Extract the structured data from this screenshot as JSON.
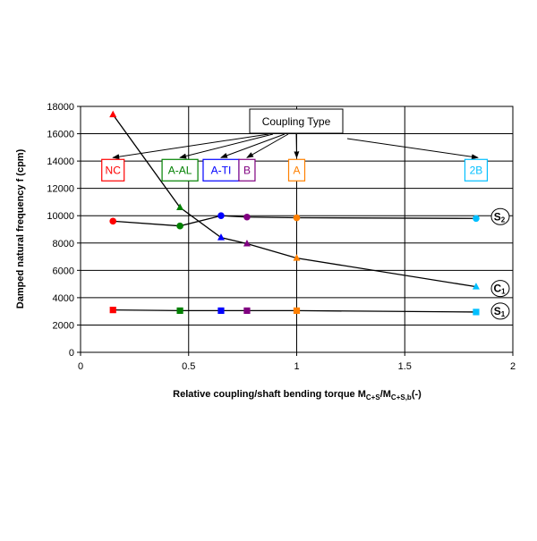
{
  "chart_data": {
    "type": "scatter",
    "xlabel": "Relative coupling/shaft bending torque M",
    "xlabel_sub1": "C+S",
    "xlabel_mid": "/M",
    "xlabel_sub2": "C+S,b",
    "xlabel_suffix": "(-)",
    "ylabel": "Damped natural frequency f (cpm)",
    "xlim": [
      0,
      2
    ],
    "ylim": [
      0,
      18000
    ],
    "x_ticks": [
      0,
      0.5,
      1,
      1.5,
      2
    ],
    "x_tick_labels": [
      "0",
      "0.5",
      "1",
      "1.5",
      "2"
    ],
    "y_ticks": [
      0,
      2000,
      4000,
      6000,
      8000,
      10000,
      12000,
      14000,
      16000,
      18000
    ],
    "y_tick_labels": [
      "0",
      "2000",
      "4000",
      "6000",
      "8000",
      "10000",
      "12000",
      "14000",
      "16000",
      "18000"
    ],
    "grid": true,
    "couplings": [
      {
        "label": "NC",
        "x": 0.15,
        "color": "#ff0000"
      },
      {
        "label": "A-AL",
        "x": 0.46,
        "color": "#008000"
      },
      {
        "label": "A-TI",
        "x": 0.65,
        "color": "#0000ff"
      },
      {
        "label": "B",
        "x": 0.77,
        "color": "#800080"
      },
      {
        "label": "A",
        "x": 1.0,
        "color": "#ff8000"
      },
      {
        "label": "2B",
        "x": 1.83,
        "color": "#00bfff"
      }
    ],
    "series": [
      {
        "name": "S",
        "name_sub": "2",
        "marker": "circle",
        "y": [
          9600,
          9250,
          10000,
          9900,
          9850,
          9800
        ]
      },
      {
        "name": "C",
        "name_sub": "1",
        "marker": "triangle",
        "y": [
          17400,
          10600,
          8400,
          7950,
          6900,
          4800
        ]
      },
      {
        "name": "S",
        "name_sub": "1",
        "marker": "square",
        "y": [
          3100,
          3050,
          3050,
          3050,
          3050,
          2950
        ]
      }
    ],
    "annotation": {
      "text": "Coupling Type",
      "label_y": 13400
    }
  }
}
